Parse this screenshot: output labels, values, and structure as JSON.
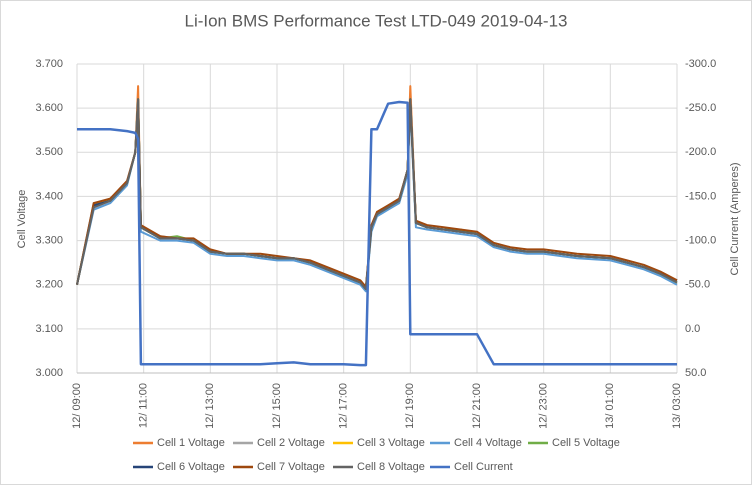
{
  "chart_data": {
    "type": "line",
    "title": "Li-Ion BMS Performance Test LTD-049 2019-04-13",
    "y_label": "Cell Voltage",
    "y2_label": "Cell Current (Amperes)",
    "x": [
      "12/ 09:00",
      "12/ 09:30",
      "12/ 10:00",
      "12/ 10:30",
      "12/ 10:45",
      "12/ 10:50",
      "12/ 10:55",
      "12/ 11:30",
      "12/ 12:00",
      "12/ 12:30",
      "12/ 13:00",
      "12/ 13:30",
      "12/ 14:00",
      "12/ 14:30",
      "12/ 15:00",
      "12/ 15:30",
      "12/ 16:00",
      "12/ 16:30",
      "12/ 17:00",
      "12/ 17:30",
      "12/ 17:40",
      "12/ 17:50",
      "12/ 18:00",
      "12/ 18:20",
      "12/ 18:40",
      "12/ 18:55",
      "12/ 19:00",
      "12/ 19:10",
      "12/ 19:30",
      "12/ 20:00",
      "12/ 20:30",
      "12/ 21:00",
      "12/ 21:30",
      "12/ 22:00",
      "12/ 22:30",
      "12/ 23:00",
      "13/ 00:00",
      "13/ 01:00",
      "13/ 01:30",
      "13/ 02:00",
      "13/ 02:30",
      "13/ 03:00"
    ],
    "xlim": [
      "12/ 09:00",
      "13/ 03:00"
    ],
    "xticks": [
      "12/ 09:00",
      "12/ 11:00",
      "12/ 13:00",
      "12/ 15:00",
      "12/ 17:00",
      "12/ 19:00",
      "12/ 21:00",
      "12/ 23:00",
      "13/ 01:00",
      "13/ 03:00"
    ],
    "ylim": [
      3.0,
      3.7
    ],
    "yticks": [
      {
        "value": 3.0,
        "label": "3.000"
      },
      {
        "value": 3.1,
        "label": "3.100"
      },
      {
        "value": 3.2,
        "label": "3.200"
      },
      {
        "value": 3.3,
        "label": "3.300"
      },
      {
        "value": 3.4,
        "label": "3.400"
      },
      {
        "value": 3.5,
        "label": "3.500"
      },
      {
        "value": 3.6,
        "label": "3.600"
      },
      {
        "value": 3.7,
        "label": "3.700"
      }
    ],
    "y2lim": [
      -300,
      50
    ],
    "y2_reversed": true,
    "y2ticks": [
      {
        "value": -300,
        "label": "-300.0"
      },
      {
        "value": -250,
        "label": "-250.0"
      },
      {
        "value": -200,
        "label": "-200.0"
      },
      {
        "value": -150,
        "label": "-150.0"
      },
      {
        "value": -100,
        "label": "-100.0"
      },
      {
        "value": -50,
        "label": "-50.0"
      },
      {
        "value": 0,
        "label": "0.0"
      },
      {
        "value": 50,
        "label": "50.0"
      }
    ],
    "grid": true,
    "legend": "bottom",
    "series": [
      {
        "name": "Cell 1 Voltage",
        "color": "#ed7d31",
        "values": [
          3.2,
          3.38,
          3.39,
          3.43,
          3.5,
          3.65,
          3.33,
          3.305,
          3.305,
          3.3,
          3.275,
          3.27,
          3.27,
          3.265,
          3.26,
          3.26,
          3.25,
          3.235,
          3.22,
          3.205,
          3.19,
          3.33,
          3.36,
          3.375,
          3.39,
          3.46,
          3.65,
          3.34,
          3.33,
          3.325,
          3.32,
          3.315,
          3.29,
          3.28,
          3.275,
          3.275,
          3.265,
          3.26,
          3.25,
          3.24,
          3.225,
          3.205
        ]
      },
      {
        "name": "Cell 2 Voltage",
        "color": "#a5a5a5",
        "values": [
          3.2,
          3.385,
          3.39,
          3.43,
          3.5,
          3.62,
          3.33,
          3.31,
          3.305,
          3.3,
          3.275,
          3.27,
          3.27,
          3.265,
          3.26,
          3.26,
          3.25,
          3.235,
          3.22,
          3.205,
          3.19,
          3.33,
          3.36,
          3.375,
          3.39,
          3.46,
          3.62,
          3.34,
          3.33,
          3.325,
          3.32,
          3.315,
          3.29,
          3.28,
          3.275,
          3.275,
          3.265,
          3.26,
          3.25,
          3.24,
          3.225,
          3.205
        ]
      },
      {
        "name": "Cell 3 Voltage",
        "color": "#ffc000",
        "values": [
          3.2,
          3.38,
          3.395,
          3.43,
          3.5,
          3.62,
          3.33,
          3.305,
          3.305,
          3.3,
          3.275,
          3.27,
          3.27,
          3.265,
          3.26,
          3.26,
          3.25,
          3.235,
          3.22,
          3.205,
          3.19,
          3.33,
          3.36,
          3.375,
          3.39,
          3.46,
          3.62,
          3.34,
          3.33,
          3.325,
          3.32,
          3.315,
          3.29,
          3.28,
          3.275,
          3.275,
          3.265,
          3.26,
          3.25,
          3.24,
          3.225,
          3.205
        ]
      },
      {
        "name": "Cell 4 Voltage",
        "color": "#5b9bd5",
        "values": [
          3.2,
          3.37,
          3.385,
          3.425,
          3.5,
          3.61,
          3.32,
          3.3,
          3.3,
          3.295,
          3.27,
          3.265,
          3.265,
          3.26,
          3.255,
          3.255,
          3.245,
          3.23,
          3.215,
          3.2,
          3.185,
          3.32,
          3.355,
          3.37,
          3.385,
          3.45,
          3.6,
          3.33,
          3.325,
          3.32,
          3.315,
          3.31,
          3.285,
          3.275,
          3.27,
          3.27,
          3.26,
          3.255,
          3.245,
          3.235,
          3.22,
          3.2
        ]
      },
      {
        "name": "Cell 5 Voltage",
        "color": "#70ad47",
        "values": [
          3.2,
          3.38,
          3.39,
          3.43,
          3.5,
          3.62,
          3.33,
          3.305,
          3.31,
          3.3,
          3.275,
          3.27,
          3.27,
          3.265,
          3.26,
          3.26,
          3.25,
          3.235,
          3.22,
          3.205,
          3.19,
          3.33,
          3.36,
          3.375,
          3.39,
          3.46,
          3.62,
          3.34,
          3.33,
          3.325,
          3.325,
          3.315,
          3.29,
          3.28,
          3.275,
          3.275,
          3.265,
          3.26,
          3.25,
          3.24,
          3.225,
          3.205
        ]
      },
      {
        "name": "Cell 6 Voltage",
        "color": "#264478",
        "values": [
          3.2,
          3.38,
          3.39,
          3.43,
          3.5,
          3.62,
          3.33,
          3.305,
          3.305,
          3.3,
          3.275,
          3.27,
          3.27,
          3.265,
          3.26,
          3.26,
          3.25,
          3.235,
          3.22,
          3.205,
          3.19,
          3.33,
          3.36,
          3.375,
          3.39,
          3.46,
          3.62,
          3.34,
          3.33,
          3.325,
          3.32,
          3.315,
          3.29,
          3.28,
          3.275,
          3.275,
          3.265,
          3.26,
          3.25,
          3.24,
          3.225,
          3.21
        ]
      },
      {
        "name": "Cell 7 Voltage",
        "color": "#9e480e",
        "values": [
          3.2,
          3.385,
          3.395,
          3.435,
          3.5,
          3.62,
          3.335,
          3.31,
          3.305,
          3.305,
          3.28,
          3.27,
          3.27,
          3.27,
          3.265,
          3.26,
          3.255,
          3.24,
          3.225,
          3.21,
          3.195,
          3.335,
          3.365,
          3.38,
          3.395,
          3.46,
          3.62,
          3.345,
          3.335,
          3.33,
          3.325,
          3.32,
          3.295,
          3.285,
          3.28,
          3.28,
          3.27,
          3.265,
          3.255,
          3.245,
          3.23,
          3.21
        ]
      },
      {
        "name": "Cell 8 Voltage",
        "color": "#636363",
        "values": [
          3.2,
          3.375,
          3.39,
          3.43,
          3.5,
          3.62,
          3.33,
          3.305,
          3.305,
          3.3,
          3.275,
          3.27,
          3.27,
          3.265,
          3.26,
          3.26,
          3.25,
          3.235,
          3.22,
          3.205,
          3.19,
          3.33,
          3.36,
          3.375,
          3.39,
          3.46,
          3.62,
          3.34,
          3.33,
          3.325,
          3.32,
          3.315,
          3.29,
          3.28,
          3.275,
          3.275,
          3.265,
          3.26,
          3.25,
          3.24,
          3.225,
          3.205
        ]
      },
      {
        "name": "Cell Current",
        "color": "#4472c4",
        "axis": "y2",
        "values": [
          -226,
          -226,
          -226,
          -224,
          -222,
          -215,
          40,
          40,
          40,
          40,
          40,
          40,
          40,
          40,
          39,
          38,
          40,
          40,
          40,
          41,
          41,
          -226,
          -226,
          -255,
          -257,
          -256,
          6,
          6,
          6,
          6,
          6,
          6,
          40,
          40,
          40,
          40,
          40,
          40,
          40,
          40,
          40,
          40
        ]
      }
    ]
  }
}
